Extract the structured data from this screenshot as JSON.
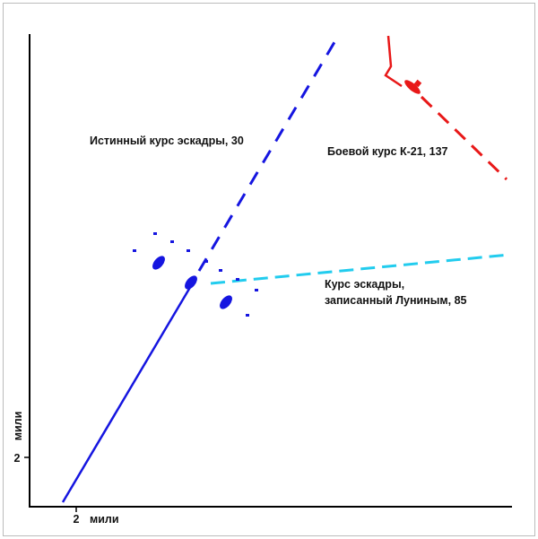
{
  "labels": {
    "true_course": "Истинный курс эскадры, 30",
    "attack_course": "Боевой курс К-21, 137",
    "recorded_course": [
      "Курс эскадры,",
      "записанный Луниным, 85"
    ]
  },
  "axes": {
    "x": {
      "tick": "2",
      "label": "мили"
    },
    "y": {
      "tick": "2",
      "label": "мили"
    }
  }
}
